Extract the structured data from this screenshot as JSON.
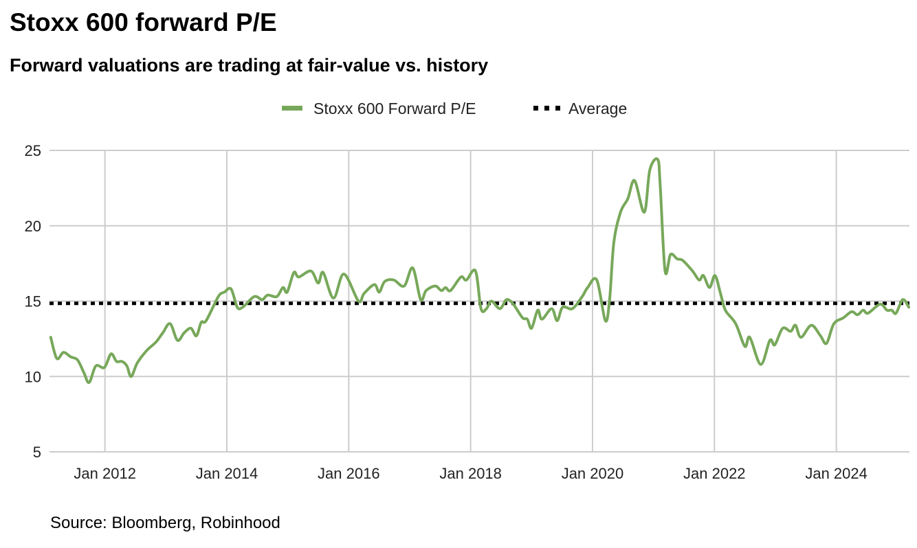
{
  "chart_data": {
    "type": "line",
    "title": "Stoxx 600 forward P/E",
    "subtitle": "Forward valuations are trading at fair-value vs. history",
    "source": "Source: Bloomberg, Robinhood",
    "xlabel": "",
    "ylabel": "",
    "ylim": [
      5,
      25
    ],
    "xlim": [
      2011.09,
      2025.2
    ],
    "yticks": [
      5,
      10,
      15,
      20,
      25
    ],
    "xticks": [
      {
        "value": 2012,
        "label": "Jan 2012"
      },
      {
        "value": 2014,
        "label": "Jan 2014"
      },
      {
        "value": 2016,
        "label": "Jan 2016"
      },
      {
        "value": 2018,
        "label": "Jan 2018"
      },
      {
        "value": 2020,
        "label": "Jan 2020"
      },
      {
        "value": 2022,
        "label": "Jan 2022"
      },
      {
        "value": 2024,
        "label": "Jan 2024"
      }
    ],
    "grid": true,
    "legend_position": "top-center",
    "colors": {
      "series": "#77a85a",
      "average": "#000000",
      "grid": "#cccccc"
    },
    "series": [
      {
        "name": "Stoxx 600 Forward P/E",
        "style": "solid",
        "x": [
          2011.11,
          2011.21,
          2011.32,
          2011.44,
          2011.55,
          2011.65,
          2011.74,
          2011.85,
          2011.99,
          2012.1,
          2012.19,
          2012.28,
          2012.36,
          2012.43,
          2012.53,
          2012.68,
          2012.84,
          2012.95,
          2013.07,
          2013.19,
          2013.3,
          2013.41,
          2013.5,
          2013.58,
          2013.66,
          2013.86,
          2013.96,
          2014.07,
          2014.17,
          2014.26,
          2014.45,
          2014.58,
          2014.67,
          2014.82,
          2014.92,
          2014.99,
          2015.1,
          2015.18,
          2015.38,
          2015.5,
          2015.58,
          2015.75,
          2015.92,
          2016.16,
          2016.25,
          2016.42,
          2016.5,
          2016.59,
          2016.74,
          2016.91,
          2017.05,
          2017.18,
          2017.27,
          2017.42,
          2017.52,
          2017.59,
          2017.67,
          2017.84,
          2017.93,
          2018.08,
          2018.17,
          2018.26,
          2018.34,
          2018.48,
          2018.59,
          2018.7,
          2018.85,
          2018.93,
          2019.0,
          2019.1,
          2019.17,
          2019.33,
          2019.42,
          2019.51,
          2019.67,
          2019.83,
          2019.92,
          2020.07,
          2020.21,
          2020.28,
          2020.35,
          2020.46,
          2020.58,
          2020.69,
          2020.85,
          2020.94,
          2021.07,
          2021.11,
          2021.19,
          2021.28,
          2021.39,
          2021.48,
          2021.64,
          2021.75,
          2021.82,
          2021.92,
          2022.01,
          2022.1,
          2022.18,
          2022.35,
          2022.5,
          2022.58,
          2022.76,
          2022.91,
          2022.99,
          2023.12,
          2023.25,
          2023.33,
          2023.42,
          2023.59,
          2023.74,
          2023.84,
          2023.96,
          2024.12,
          2024.25,
          2024.35,
          2024.44,
          2024.52,
          2024.72,
          2024.83,
          2024.91,
          2024.98,
          2025.09,
          2025.19
        ],
        "values": [
          12.6,
          11.2,
          11.6,
          11.3,
          11.1,
          10.3,
          9.6,
          10.7,
          10.6,
          11.5,
          11.0,
          11.0,
          10.7,
          10.0,
          10.9,
          11.7,
          12.3,
          12.9,
          13.5,
          12.4,
          12.9,
          13.2,
          12.7,
          13.6,
          13.7,
          15.3,
          15.6,
          15.8,
          14.6,
          14.6,
          15.3,
          15.1,
          15.4,
          15.3,
          15.9,
          15.6,
          16.9,
          16.6,
          17.0,
          16.2,
          16.9,
          15.2,
          16.8,
          15.0,
          15.5,
          16.1,
          15.6,
          16.3,
          16.4,
          16.0,
          17.2,
          15.1,
          15.7,
          16.0,
          15.7,
          15.9,
          15.7,
          16.6,
          16.4,
          17.0,
          14.5,
          14.5,
          15.0,
          14.5,
          15.1,
          14.8,
          13.9,
          13.8,
          13.2,
          14.4,
          13.8,
          14.5,
          13.7,
          14.6,
          14.5,
          15.3,
          15.9,
          16.4,
          13.7,
          15.1,
          18.9,
          20.9,
          21.8,
          23.0,
          20.9,
          23.7,
          24.4,
          22.7,
          17.0,
          18.1,
          17.8,
          17.7,
          17.0,
          16.4,
          16.7,
          15.9,
          16.7,
          15.5,
          14.4,
          13.5,
          12.0,
          12.6,
          10.8,
          12.4,
          12.1,
          13.2,
          13.0,
          13.4,
          12.6,
          13.4,
          12.7,
          12.2,
          13.5,
          13.9,
          14.3,
          14.1,
          14.4,
          14.2,
          14.8,
          14.4,
          14.4,
          14.2,
          15.1,
          14.6
        ]
      },
      {
        "name": "Average",
        "style": "dotted",
        "value": 14.85
      }
    ]
  }
}
